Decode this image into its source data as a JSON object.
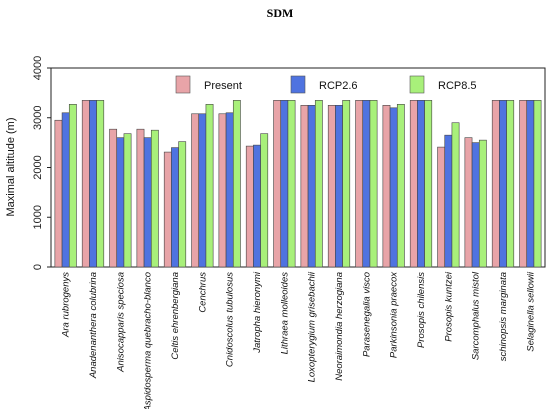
{
  "chart_data": {
    "type": "bar",
    "title": "SDM",
    "xlabel": "",
    "ylabel": "Maximal altitude (m)",
    "ylim": [
      0,
      4000
    ],
    "yticks": [
      0,
      1000,
      2000,
      3000,
      4000
    ],
    "legend_position": "top",
    "grid": false,
    "categories": [
      "Ara rubrogenys",
      "Anadenanthera colubrina",
      "Anisocapparis speciosa",
      "Aspidosperma quebracho-blanco",
      "Celtis ehrenbergiana",
      "Cenchrus",
      "Cnidoscolus tubulosus",
      "Jatropha hieronymi",
      "Lithraea molleoides",
      "Loxopterygium grisebachii",
      "Neoraimondia herzogiana",
      "Parasenegalia visco",
      "Parkinsonia praecox",
      "Prosopis chilensis",
      "Prosopis kuntzei",
      "Sarcomphalus mistol",
      "schinopsis marginata",
      "Selaginella sellowii"
    ],
    "series": [
      {
        "name": "Present",
        "color": "#e8a4a8",
        "values": [
          2950,
          3350,
          2770,
          2770,
          2310,
          3080,
          3080,
          2430,
          3350,
          3250,
          3250,
          3350,
          3250,
          3350,
          2410,
          2600,
          3350,
          3350
        ]
      },
      {
        "name": "RCP2.6",
        "color": "#4f73e0",
        "values": [
          3100,
          3350,
          2600,
          2600,
          2400,
          3080,
          3100,
          2450,
          3350,
          3250,
          3250,
          3350,
          3200,
          3350,
          2650,
          2500,
          3350,
          3350
        ]
      },
      {
        "name": "RCP8.5",
        "color": "#a8f07a",
        "values": [
          3270,
          3350,
          2680,
          2750,
          2520,
          3270,
          3350,
          2680,
          3350,
          3350,
          3350,
          3350,
          3270,
          3350,
          2900,
          2550,
          3350,
          3350
        ]
      }
    ]
  }
}
